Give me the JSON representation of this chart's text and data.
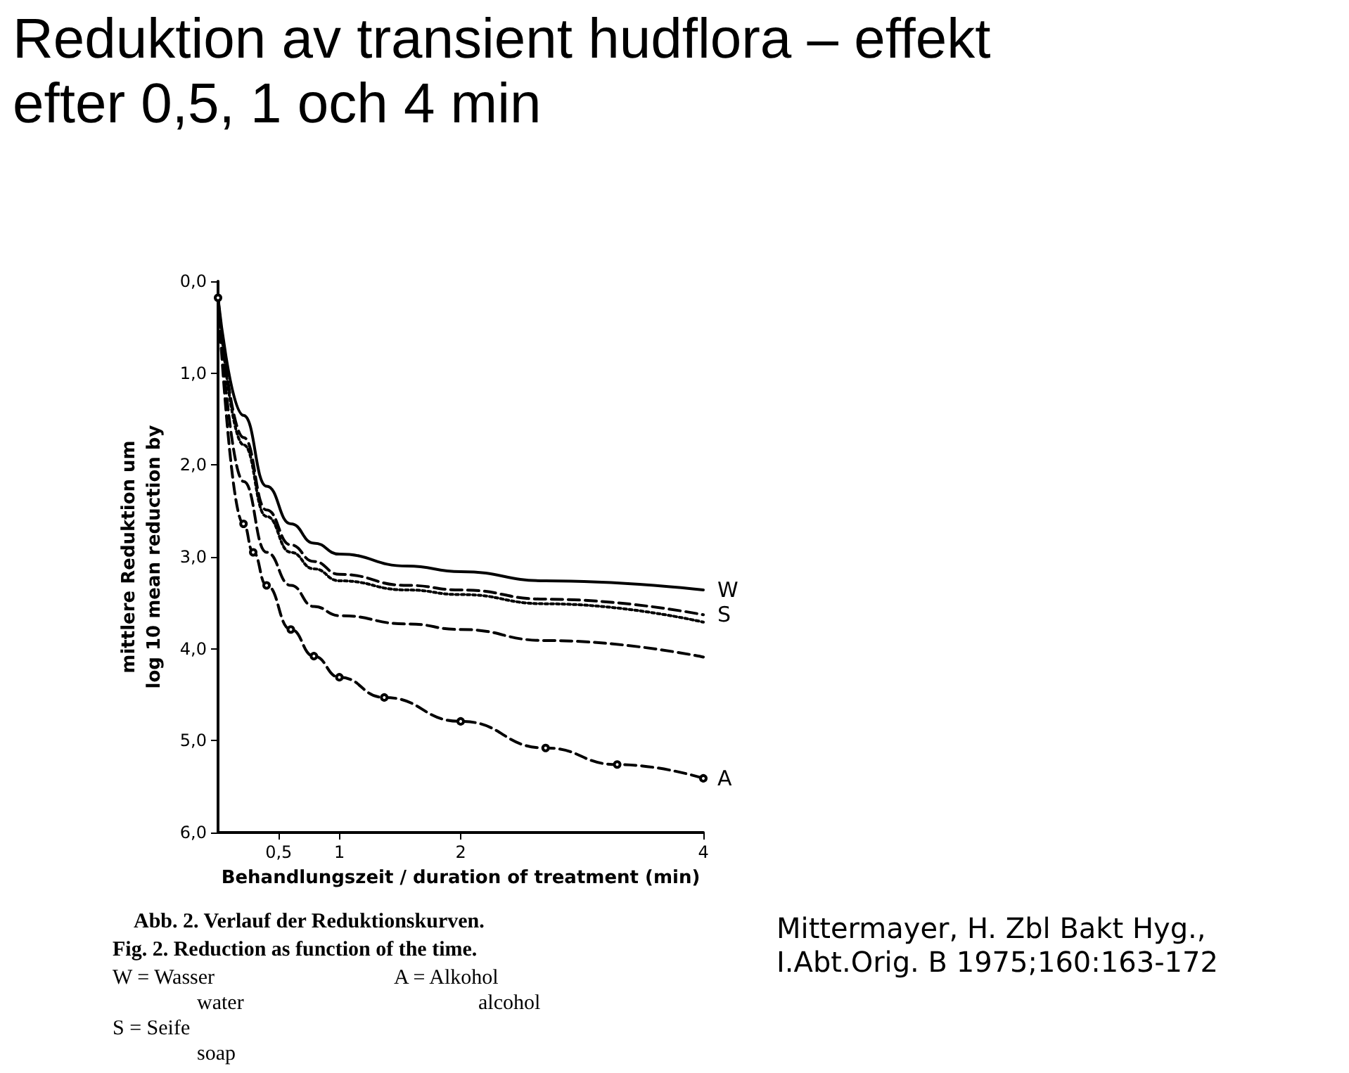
{
  "chart_data": {
    "type": "line",
    "title": "Reduktion av transient hudflora – effekt efter 0,5, 1 och 4 min",
    "xlabel": "Behandlungszeit / duration of treatment (min)",
    "ylabel": "mittlere Reduktion um\nlog 10 mean reduction by",
    "xlim": [
      0,
      4
    ],
    "xticks": [
      {
        "value": 0.5,
        "label": "0,5"
      },
      1,
      2,
      4
    ],
    "ylim": [
      6,
      0
    ],
    "yticks": [
      {
        "value": 0,
        "label": "0,0"
      },
      {
        "value": 1,
        "label": "1,0"
      },
      {
        "value": 2,
        "label": "2,0"
      },
      {
        "value": 3,
        "label": "3,0"
      },
      {
        "value": 4,
        "label": "4,0"
      },
      {
        "value": 5,
        "label": "5,0"
      },
      {
        "value": 6,
        "label": "6,0"
      }
    ],
    "grid": false,
    "legend": false,
    "series": [
      {
        "name": "W",
        "color": "#000000",
        "line_style": "solid",
        "marker": "none",
        "x": [
          0,
          0.21,
          0.4,
          0.6,
          0.79,
          1,
          1.56,
          2,
          2.7,
          4
        ],
        "values": [
          0.18,
          1.46,
          2.23,
          2.64,
          2.85,
          2.97,
          3.1,
          3.16,
          3.26,
          3.36
        ]
      },
      {
        "name": "S",
        "color": "#000000",
        "line_style": "dashed",
        "marker": "none",
        "x": [
          0,
          0.21,
          0.4,
          0.6,
          0.79,
          1,
          1.56,
          2,
          2.7,
          4
        ],
        "values": [
          0.18,
          1.7,
          2.49,
          2.87,
          3.05,
          3.19,
          3.31,
          3.36,
          3.46,
          3.63
        ]
      },
      {
        "color": "#000000",
        "line_style": "dotted",
        "marker": "none",
        "x": [
          0,
          0.21,
          0.4,
          0.6,
          0.79,
          1,
          1.56,
          2,
          2.7,
          4
        ],
        "values": [
          0.18,
          1.78,
          2.56,
          2.95,
          3.13,
          3.26,
          3.36,
          3.41,
          3.51,
          3.71
        ]
      },
      {
        "color": "#000000",
        "line_style": "dashed",
        "marker": "none",
        "x": [
          0,
          0.21,
          0.4,
          0.6,
          0.79,
          1,
          1.56,
          2,
          2.7,
          4
        ],
        "values": [
          0.18,
          2.18,
          2.95,
          3.31,
          3.54,
          3.64,
          3.73,
          3.79,
          3.91,
          4.09
        ]
      },
      {
        "name": "A",
        "color": "#000000",
        "line_style": "dashed",
        "marker": "circle",
        "x": [
          0,
          0.21,
          0.29,
          0.4,
          0.6,
          0.79,
          1,
          1.37,
          2,
          2.7,
          3.29,
          4
        ],
        "values": [
          0.18,
          2.64,
          2.95,
          3.31,
          3.79,
          4.08,
          4.31,
          4.53,
          4.79,
          5.08,
          5.26,
          5.41
        ]
      }
    ],
    "annotations": [
      "Abb. 2. Verlauf der Reduktionskurven.",
      "Fig. 2. Reduction as function of the time.",
      "W = Wasser",
      "water",
      "S = Seife",
      "soap",
      "A = Alkohol",
      "alcohol",
      "Mittermayer, H. Zbl Bakt Hyg.,I.Abt.Orig. B 1975;160:163-172"
    ]
  }
}
